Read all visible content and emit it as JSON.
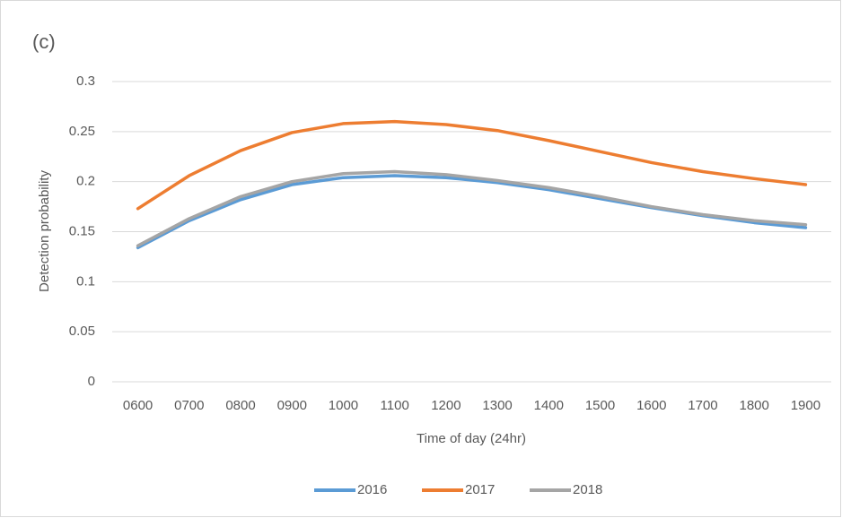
{
  "chart_data": {
    "type": "line",
    "title": "(c)",
    "x_label": "Time of day (24hr)",
    "y_label": "Detection probability",
    "categories": [
      "0600",
      "0700",
      "0800",
      "0900",
      "1000",
      "1100",
      "1200",
      "1300",
      "1400",
      "1500",
      "1600",
      "1700",
      "1800",
      "1900"
    ],
    "series": [
      {
        "name": "2016",
        "color": "#5b9bd5",
        "values": [
          0.134,
          0.161,
          0.182,
          0.197,
          0.204,
          0.206,
          0.204,
          0.199,
          0.192,
          0.183,
          0.174,
          0.166,
          0.159,
          0.154
        ]
      },
      {
        "name": "2017",
        "color": "#ed7d31",
        "values": [
          0.173,
          0.206,
          0.231,
          0.249,
          0.258,
          0.26,
          0.257,
          0.251,
          0.241,
          0.23,
          0.219,
          0.21,
          0.203,
          0.197
        ]
      },
      {
        "name": "2018",
        "color": "#a5a5a5",
        "values": [
          0.136,
          0.163,
          0.185,
          0.2,
          0.208,
          0.21,
          0.207,
          0.201,
          0.194,
          0.185,
          0.175,
          0.167,
          0.161,
          0.157
        ]
      }
    ],
    "ylim": [
      0,
      0.3
    ],
    "yticks": [
      0,
      0.05,
      0.1,
      0.15,
      0.2,
      0.25,
      0.3
    ],
    "grid": true,
    "legend": "bottom"
  }
}
